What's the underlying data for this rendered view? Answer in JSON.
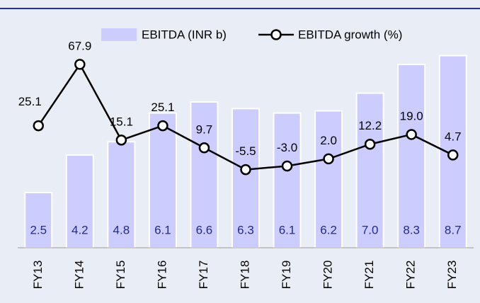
{
  "chart_data": {
    "type": "bar_line",
    "categories": [
      "FY13",
      "FY14",
      "FY15",
      "FY16",
      "FY17",
      "FY18",
      "FY19",
      "FY20",
      "FY21",
      "FY22",
      "FY23"
    ],
    "series": [
      {
        "name": "EBITDA (INR b)",
        "color": "#ccccff",
        "values": [
          2.5,
          4.2,
          4.8,
          6.1,
          6.6,
          6.3,
          6.1,
          6.2,
          7.0,
          8.3,
          8.7
        ],
        "value_labels": [
          "2.5",
          "4.2",
          "4.8",
          "6.1",
          "6.6",
          "6.3",
          "6.1",
          "6.2",
          "7.0",
          "8.3",
          "8.7"
        ]
      },
      {
        "name": "EBITDA growth (%)",
        "color": "#000000",
        "axis": "y2",
        "values": [
          25.1,
          67.9,
          15.1,
          25.1,
          9.7,
          -5.5,
          -3.0,
          2.0,
          12.2,
          19.0,
          4.7
        ],
        "value_labels": [
          "25.1",
          "67.9",
          "15.1",
          "25.1",
          "9.7",
          "-5.5",
          "-3.0",
          "2.0",
          "12.2",
          "19.0",
          "4.7"
        ]
      }
    ],
    "ylim": [
      0,
      10
    ],
    "y2lim": [
      -60,
      94
    ],
    "legend": "top"
  }
}
